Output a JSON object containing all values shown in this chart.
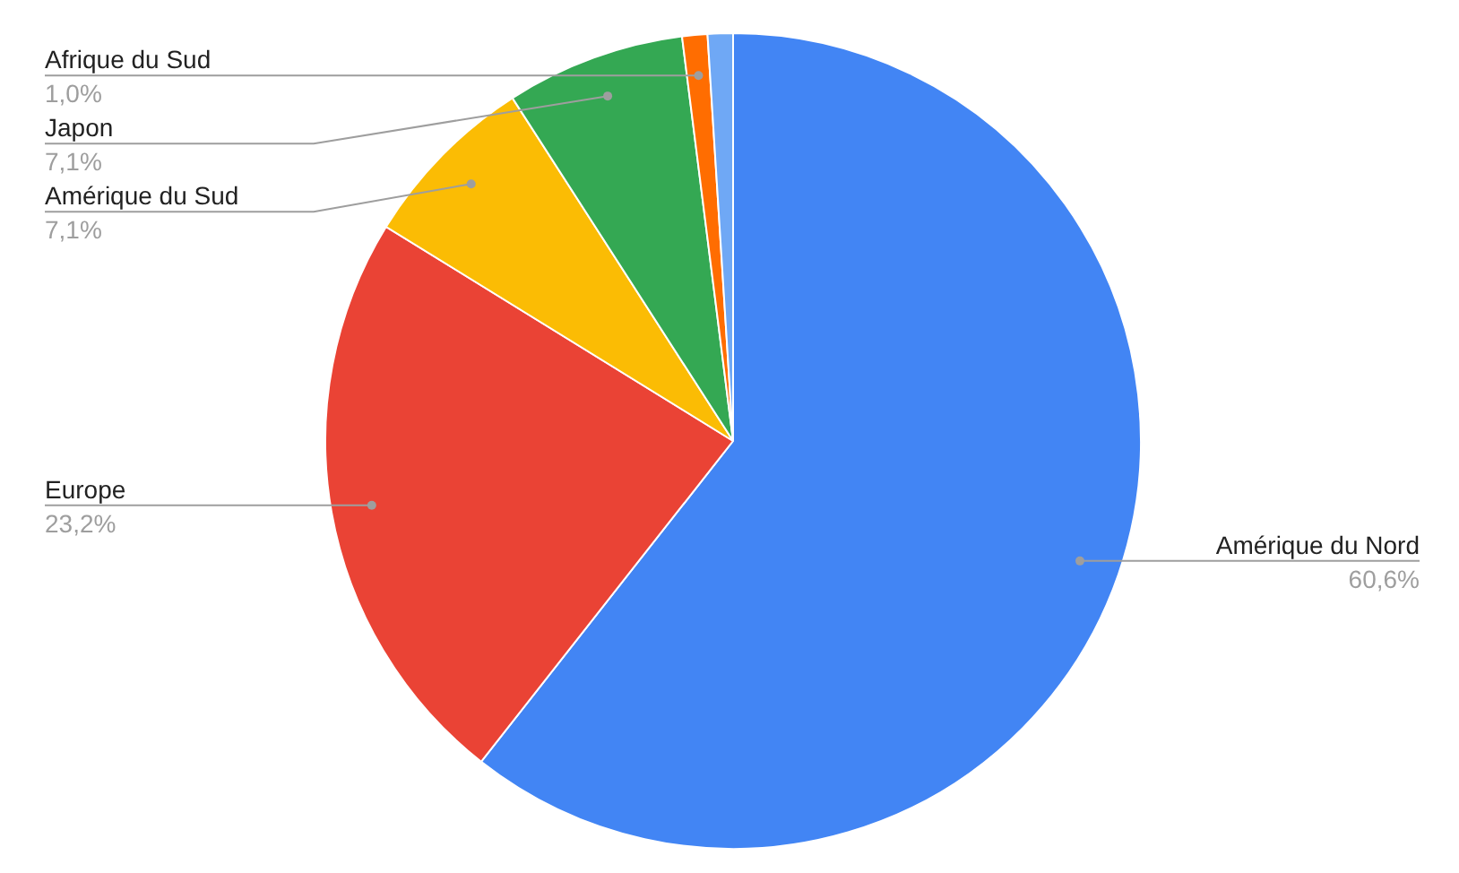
{
  "chart_data": {
    "type": "pie",
    "categories": [
      "Amérique du Nord",
      "Europe",
      "Amérique du Sud",
      "Japon",
      "Afrique du Sud",
      null
    ],
    "values": [
      60.6,
      23.2,
      7.1,
      7.1,
      1.0,
      1.0
    ],
    "colors": [
      "#4285f4",
      "#ea4335",
      "#fbbc04",
      "#34a853",
      "#ff6d01",
      "#6fa8f5"
    ],
    "value_labels": [
      "60,6%",
      "23,2%",
      "7,1%",
      "7,1%",
      "1,0%",
      null
    ],
    "legend": false
  }
}
